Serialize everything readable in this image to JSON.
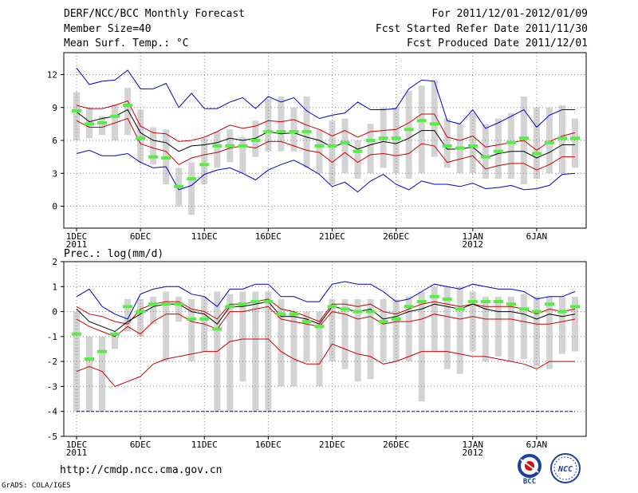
{
  "header": {
    "line1": "DERF/NCC/BCC Monthly Forecast",
    "line2": "Member Size=40",
    "line3": "Mean Surf. Temp.: °C",
    "right1": "For 2011/12/01-2012/01/09",
    "right2": "Fcst Started Refer Date 2011/11/30",
    "right3": "Fcst Produced Date 2011/12/01"
  },
  "footer": {
    "url": "http://cmdp.ncc.cma.gov.cn",
    "grads": "GrADS: COLA/IGES"
  },
  "logos": {
    "bcc_text": "BCC",
    "ncc_text": "NCC"
  },
  "colors": {
    "mean": "#000000",
    "spread": "#cc0000",
    "extreme": "#0000cc",
    "box": "#d3d3d3",
    "marker": "#55ee44",
    "grid": "#888888"
  },
  "chart_data": [
    {
      "type": "box-line",
      "title": "Mean Surf. Temp.: °C",
      "x_tick_labels": [
        "1DEC",
        "6DEC",
        "11DEC",
        "16DEC",
        "21DEC",
        "26DEC",
        "1JAN",
        "6JAN"
      ],
      "x_tick_days": [
        1,
        6,
        11,
        16,
        21,
        26,
        32,
        37
      ],
      "x_year_labels": [
        {
          "day": 1,
          "label": "2011"
        },
        {
          "day": 32,
          "label": "2012"
        }
      ],
      "ylim": [
        -2,
        14
      ],
      "y_ticks": [
        0,
        3,
        6,
        9,
        12
      ],
      "days": [
        1,
        2,
        3,
        4,
        5,
        6,
        7,
        8,
        9,
        10,
        11,
        12,
        13,
        14,
        15,
        16,
        17,
        18,
        19,
        20,
        21,
        22,
        23,
        24,
        25,
        26,
        27,
        28,
        29,
        30,
        31,
        32,
        33,
        34,
        35,
        36,
        37,
        38,
        39,
        40
      ],
      "box_top": [
        10.4,
        9.0,
        8.2,
        9.3,
        10.8,
        8.8,
        7.2,
        7.0,
        3.5,
        4.0,
        6.2,
        6.8,
        7.0,
        6.3,
        7.8,
        9.8,
        10.0,
        9.0,
        10.0,
        7.0,
        7.8,
        8.0,
        6.0,
        7.5,
        9.0,
        9.0,
        10.5,
        11.0,
        11.5,
        8.0,
        7.5,
        8.5,
        7.5,
        8.0,
        8.5,
        10.0,
        9.0,
        9.0,
        9.2,
        8.0
      ],
      "box_bottom": [
        6.0,
        6.2,
        6.5,
        6.0,
        6.5,
        4.0,
        3.8,
        2.0,
        0.0,
        -0.8,
        2.0,
        3.5,
        4.0,
        3.0,
        4.5,
        5.0,
        5.0,
        5.0,
        3.5,
        3.0,
        2.0,
        3.0,
        2.5,
        3.0,
        3.5,
        3.0,
        2.5,
        3.0,
        4.5,
        3.5,
        3.0,
        3.0,
        2.5,
        2.5,
        2.5,
        2.0,
        2.5,
        3.0,
        3.0,
        3.5
      ],
      "marker": [
        8.7,
        7.5,
        7.6,
        8.2,
        9.2,
        6.2,
        4.5,
        4.4,
        1.8,
        2.5,
        3.8,
        5.5,
        5.5,
        5.5,
        6.0,
        6.8,
        6.8,
        6.8,
        6.8,
        5.5,
        5.5,
        5.8,
        5.0,
        6.0,
        6.2,
        6.2,
        7.0,
        7.8,
        7.5,
        5.5,
        5.3,
        5.5,
        4.5,
        5.0,
        5.8,
        6.2,
        4.8,
        5.8,
        6.2,
        6.2
      ],
      "series": [
        {
          "name": "max",
          "color_key": "extreme",
          "values": [
            12.6,
            11.1,
            11.4,
            11.5,
            12.4,
            10.7,
            10.7,
            11.2,
            9.0,
            10.3,
            8.9,
            8.9,
            9.5,
            9.9,
            8.9,
            10.0,
            9.5,
            9.9,
            8.7,
            8.0,
            8.3,
            8.5,
            9.5,
            8.8,
            8.8,
            8.9,
            10.7,
            11.5,
            11.4,
            7.8,
            7.5,
            8.8,
            7.1,
            7.6,
            8.2,
            8.8,
            7.2,
            8.3,
            8.8,
            8.8
          ]
        },
        {
          "name": "upper",
          "color_key": "spread",
          "values": [
            9.2,
            8.9,
            8.9,
            9.2,
            9.6,
            7.3,
            6.7,
            6.6,
            5.9,
            6.0,
            6.3,
            6.8,
            7.4,
            7.1,
            7.3,
            7.8,
            7.7,
            7.9,
            7.4,
            7.0,
            6.4,
            6.9,
            6.3,
            6.8,
            6.9,
            7.0,
            7.6,
            8.4,
            8.4,
            6.3,
            6.0,
            6.4,
            5.4,
            5.6,
            5.8,
            6.0,
            5.1,
            5.9,
            6.4,
            6.7
          ]
        },
        {
          "name": "mean",
          "color_key": "mean",
          "values": [
            8.6,
            7.7,
            8.0,
            8.2,
            8.8,
            6.7,
            6.0,
            5.8,
            5.0,
            5.5,
            5.6,
            5.8,
            6.2,
            6.0,
            6.2,
            6.8,
            6.6,
            6.7,
            6.3,
            6.0,
            5.4,
            5.8,
            5.2,
            5.6,
            5.9,
            5.7,
            6.2,
            6.9,
            6.9,
            5.2,
            5.2,
            5.4,
            4.4,
            4.8,
            5.0,
            5.0,
            4.4,
            4.9,
            5.6,
            5.6
          ]
        },
        {
          "name": "lower",
          "color_key": "spread",
          "values": [
            7.8,
            7.2,
            7.2,
            7.6,
            8.0,
            5.7,
            5.3,
            5.0,
            3.8,
            4.4,
            4.7,
            4.9,
            5.3,
            5.5,
            5.3,
            5.9,
            5.9,
            5.5,
            5.1,
            4.9,
            4.0,
            4.9,
            4.0,
            4.7,
            4.8,
            4.6,
            4.8,
            5.7,
            5.5,
            4.0,
            4.3,
            4.6,
            3.4,
            3.7,
            3.9,
            3.9,
            3.3,
            3.8,
            4.5,
            4.5
          ]
        },
        {
          "name": "min",
          "color_key": "extreme",
          "values": [
            4.8,
            5.1,
            4.6,
            4.6,
            4.8,
            4.0,
            3.5,
            3.6,
            1.5,
            1.9,
            2.9,
            3.3,
            3.5,
            3.0,
            2.4,
            3.3,
            3.8,
            4.2,
            3.6,
            2.9,
            1.8,
            2.2,
            1.3,
            2.3,
            2.9,
            2.0,
            1.5,
            2.3,
            2.0,
            2.0,
            1.8,
            2.1,
            1.6,
            1.7,
            1.9,
            1.5,
            1.6,
            1.9,
            2.9,
            3.0
          ]
        }
      ]
    },
    {
      "type": "box-line",
      "title": "Prec.: log(mm/d)",
      "x_tick_labels": [
        "1DEC",
        "6DEC",
        "11DEC",
        "16DEC",
        "21DEC",
        "26DEC",
        "1JAN",
        "6JAN"
      ],
      "x_tick_days": [
        1,
        6,
        11,
        16,
        21,
        26,
        32,
        37
      ],
      "x_year_labels": [
        {
          "day": 1,
          "label": "2011"
        },
        {
          "day": 32,
          "label": "2012"
        }
      ],
      "ylim": [
        -5,
        2
      ],
      "y_ticks": [
        -5,
        -4,
        -3,
        -2,
        -1,
        0,
        1,
        2
      ],
      "baseline": -4,
      "days": [
        1,
        2,
        3,
        4,
        5,
        6,
        7,
        8,
        9,
        10,
        11,
        12,
        13,
        14,
        15,
        16,
        17,
        18,
        19,
        20,
        21,
        22,
        23,
        24,
        25,
        26,
        27,
        28,
        29,
        30,
        31,
        32,
        33,
        34,
        35,
        36,
        37,
        38,
        39,
        40
      ],
      "box_top": [
        0.0,
        -1.0,
        -1.0,
        -1.0,
        0.5,
        0.5,
        0.6,
        0.8,
        0.6,
        0.5,
        0.6,
        0.8,
        0.7,
        0.8,
        0.8,
        0.8,
        0.5,
        0.0,
        0.0,
        0.0,
        0.5,
        0.5,
        0.5,
        0.5,
        0.5,
        0.5,
        0.6,
        0.8,
        1.0,
        1.0,
        1.0,
        0.8,
        0.6,
        0.6,
        0.6,
        0.7,
        0.6,
        0.6,
        0.6,
        0.6
      ],
      "box_bottom": [
        -4.0,
        -4.0,
        -4.0,
        -1.5,
        -0.8,
        -1.0,
        -0.5,
        -2.0,
        -0.4,
        -2.0,
        -1.6,
        -4.0,
        -4.0,
        -2.8,
        -4.0,
        -4.0,
        -3.0,
        -3.0,
        -2.0,
        -3.0,
        -2.0,
        -2.3,
        -2.8,
        -2.7,
        -2.0,
        -2.0,
        -2.0,
        -3.6,
        -1.6,
        -2.3,
        -2.5,
        -1.6,
        -2.0,
        -1.8,
        -2.0,
        -1.9,
        -2.2,
        -2.3,
        -1.7,
        -1.6
      ],
      "marker": [
        -0.9,
        -1.9,
        -1.6,
        -0.9,
        0.2,
        0.0,
        0.3,
        0.3,
        0.3,
        -0.3,
        -0.3,
        -0.7,
        0.2,
        0.3,
        0.4,
        0.4,
        -0.1,
        -0.1,
        -0.4,
        -0.6,
        0.2,
        0.1,
        0.0,
        0.0,
        -0.4,
        -0.3,
        0.2,
        0.4,
        0.6,
        0.5,
        0.1,
        0.4,
        0.4,
        0.4,
        0.3,
        0.1,
        0.0,
        0.3,
        0.0,
        0.2
      ],
      "series": [
        {
          "name": "max",
          "color_key": "extreme",
          "values": [
            0.6,
            0.9,
            0.2,
            -0.1,
            -0.3,
            0.7,
            0.9,
            1.0,
            1.0,
            0.7,
            0.6,
            0.2,
            0.9,
            0.9,
            1.1,
            1.1,
            0.6,
            0.6,
            0.4,
            0.4,
            1.1,
            1.2,
            1.1,
            1.1,
            0.8,
            0.4,
            0.5,
            0.8,
            1.1,
            1.0,
            0.9,
            1.1,
            1.0,
            0.9,
            0.9,
            0.8,
            0.5,
            0.6,
            0.6,
            0.8
          ]
        },
        {
          "name": "upper",
          "color_key": "spread",
          "values": [
            0.2,
            -0.1,
            -0.2,
            -0.4,
            -0.5,
            0.1,
            0.3,
            0.4,
            0.4,
            0.1,
            0.0,
            -0.3,
            0.3,
            0.3,
            0.4,
            0.5,
            0.1,
            0.0,
            -0.2,
            -0.4,
            0.3,
            0.3,
            0.2,
            0.3,
            0.0,
            -0.1,
            0.1,
            0.3,
            0.4,
            0.3,
            0.2,
            0.3,
            0.2,
            0.2,
            0.2,
            0.1,
            -0.1,
            0.1,
            0.0,
            0.1
          ]
        },
        {
          "name": "mean",
          "color_key": "mean",
          "values": [
            0.1,
            -0.4,
            -0.6,
            -0.8,
            -0.4,
            -0.1,
            0.2,
            0.3,
            0.3,
            0.0,
            -0.1,
            -0.5,
            0.2,
            0.2,
            0.3,
            0.4,
            -0.2,
            -0.2,
            -0.3,
            -0.5,
            0.2,
            0.1,
            0.0,
            0.1,
            -0.3,
            -0.2,
            0.0,
            0.1,
            0.3,
            0.2,
            0.1,
            0.3,
            0.1,
            0.0,
            0.0,
            -0.1,
            -0.3,
            -0.1,
            -0.2,
            -0.1
          ]
        },
        {
          "name": "lower",
          "color_key": "spread",
          "values": [
            -0.3,
            -0.6,
            -0.8,
            -1.0,
            -0.6,
            -0.9,
            -0.4,
            -0.1,
            -0.1,
            -0.4,
            -0.5,
            -0.7,
            0.0,
            0.0,
            0.1,
            0.2,
            -0.3,
            -0.4,
            -0.5,
            -0.6,
            0.0,
            -0.1,
            -0.3,
            -0.2,
            -0.5,
            -0.4,
            -0.4,
            -0.3,
            -0.1,
            -0.2,
            -0.3,
            -0.2,
            -0.3,
            -0.3,
            -0.3,
            -0.4,
            -0.5,
            -0.5,
            -0.4,
            -0.3
          ]
        },
        {
          "name": "min",
          "color_key": "spread",
          "values": [
            -2.4,
            -2.2,
            -2.4,
            -3.0,
            -2.8,
            -2.6,
            -2.1,
            -1.9,
            -1.8,
            -1.7,
            -1.6,
            -1.6,
            -1.2,
            -1.1,
            -1.1,
            -1.1,
            -1.6,
            -1.9,
            -2.1,
            -2.1,
            -1.3,
            -1.5,
            -1.7,
            -1.8,
            -2.1,
            -2.0,
            -1.8,
            -1.6,
            -1.6,
            -1.6,
            -1.7,
            -1.8,
            -1.8,
            -1.9,
            -2.0,
            -2.1,
            -2.3,
            -2.0,
            -2.0,
            -2.0
          ]
        }
      ]
    }
  ]
}
